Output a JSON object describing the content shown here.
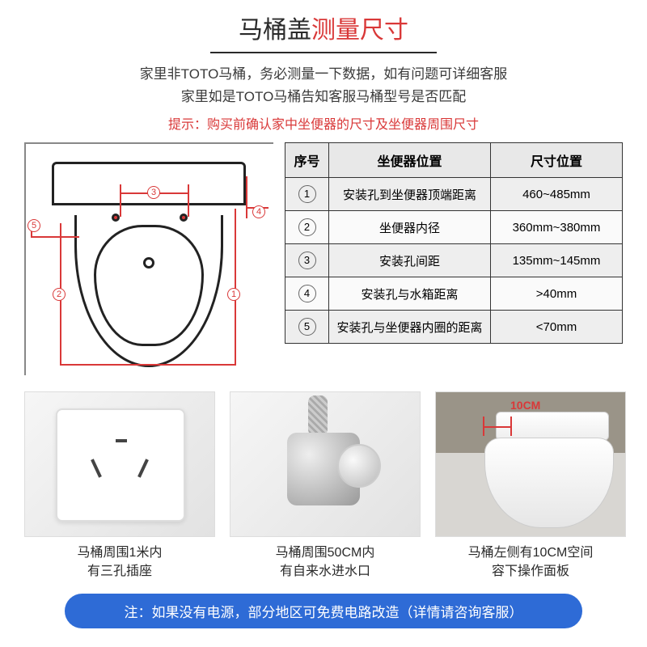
{
  "title": {
    "part1": "马桶盖",
    "part2": "测量尺寸",
    "color_black": "#2a2a2a",
    "color_red": "#d93838"
  },
  "subtitle": {
    "line1": "家里非TOTO马桶，务必测量一下数据，如有问题可详细客服",
    "line2": "家里如是TOTO马桶告知客服马桶型号是否匹配"
  },
  "tip": "提示：购买前确认家中坐便器的尺寸及坐便器周围尺寸",
  "table": {
    "headers": [
      "序号",
      "坐便器位置",
      "尺寸位置"
    ],
    "rows": [
      {
        "idx": "1",
        "pos": "安装孔到坐便器顶端距离",
        "size": "460~485mm"
      },
      {
        "idx": "2",
        "pos": "坐便器内径",
        "size": "360mm~380mm"
      },
      {
        "idx": "3",
        "pos": "安装孔间距",
        "size": "135mm~145mm"
      },
      {
        "idx": "4",
        "pos": "安装孔与水箱距离",
        "size": ">40mm"
      },
      {
        "idx": "5",
        "pos": "安装孔与坐便器内圈的距离",
        "size": "<70mm"
      }
    ]
  },
  "photos": {
    "p1": {
      "line1": "马桶周围1米内",
      "line2": "有三孔插座"
    },
    "p2": {
      "line1": "马桶周围50CM内",
      "line2": "有自来水进水口"
    },
    "p3": {
      "line1": "马桶左侧有10CM空间",
      "line2": "容下操作面板",
      "overlay": "10CM"
    }
  },
  "footer": "注：如果没有电源，部分地区可免费电路改造（详情请咨询客服）",
  "colors": {
    "accent_red": "#d93838",
    "accent_blue": "#2e6bd6"
  }
}
